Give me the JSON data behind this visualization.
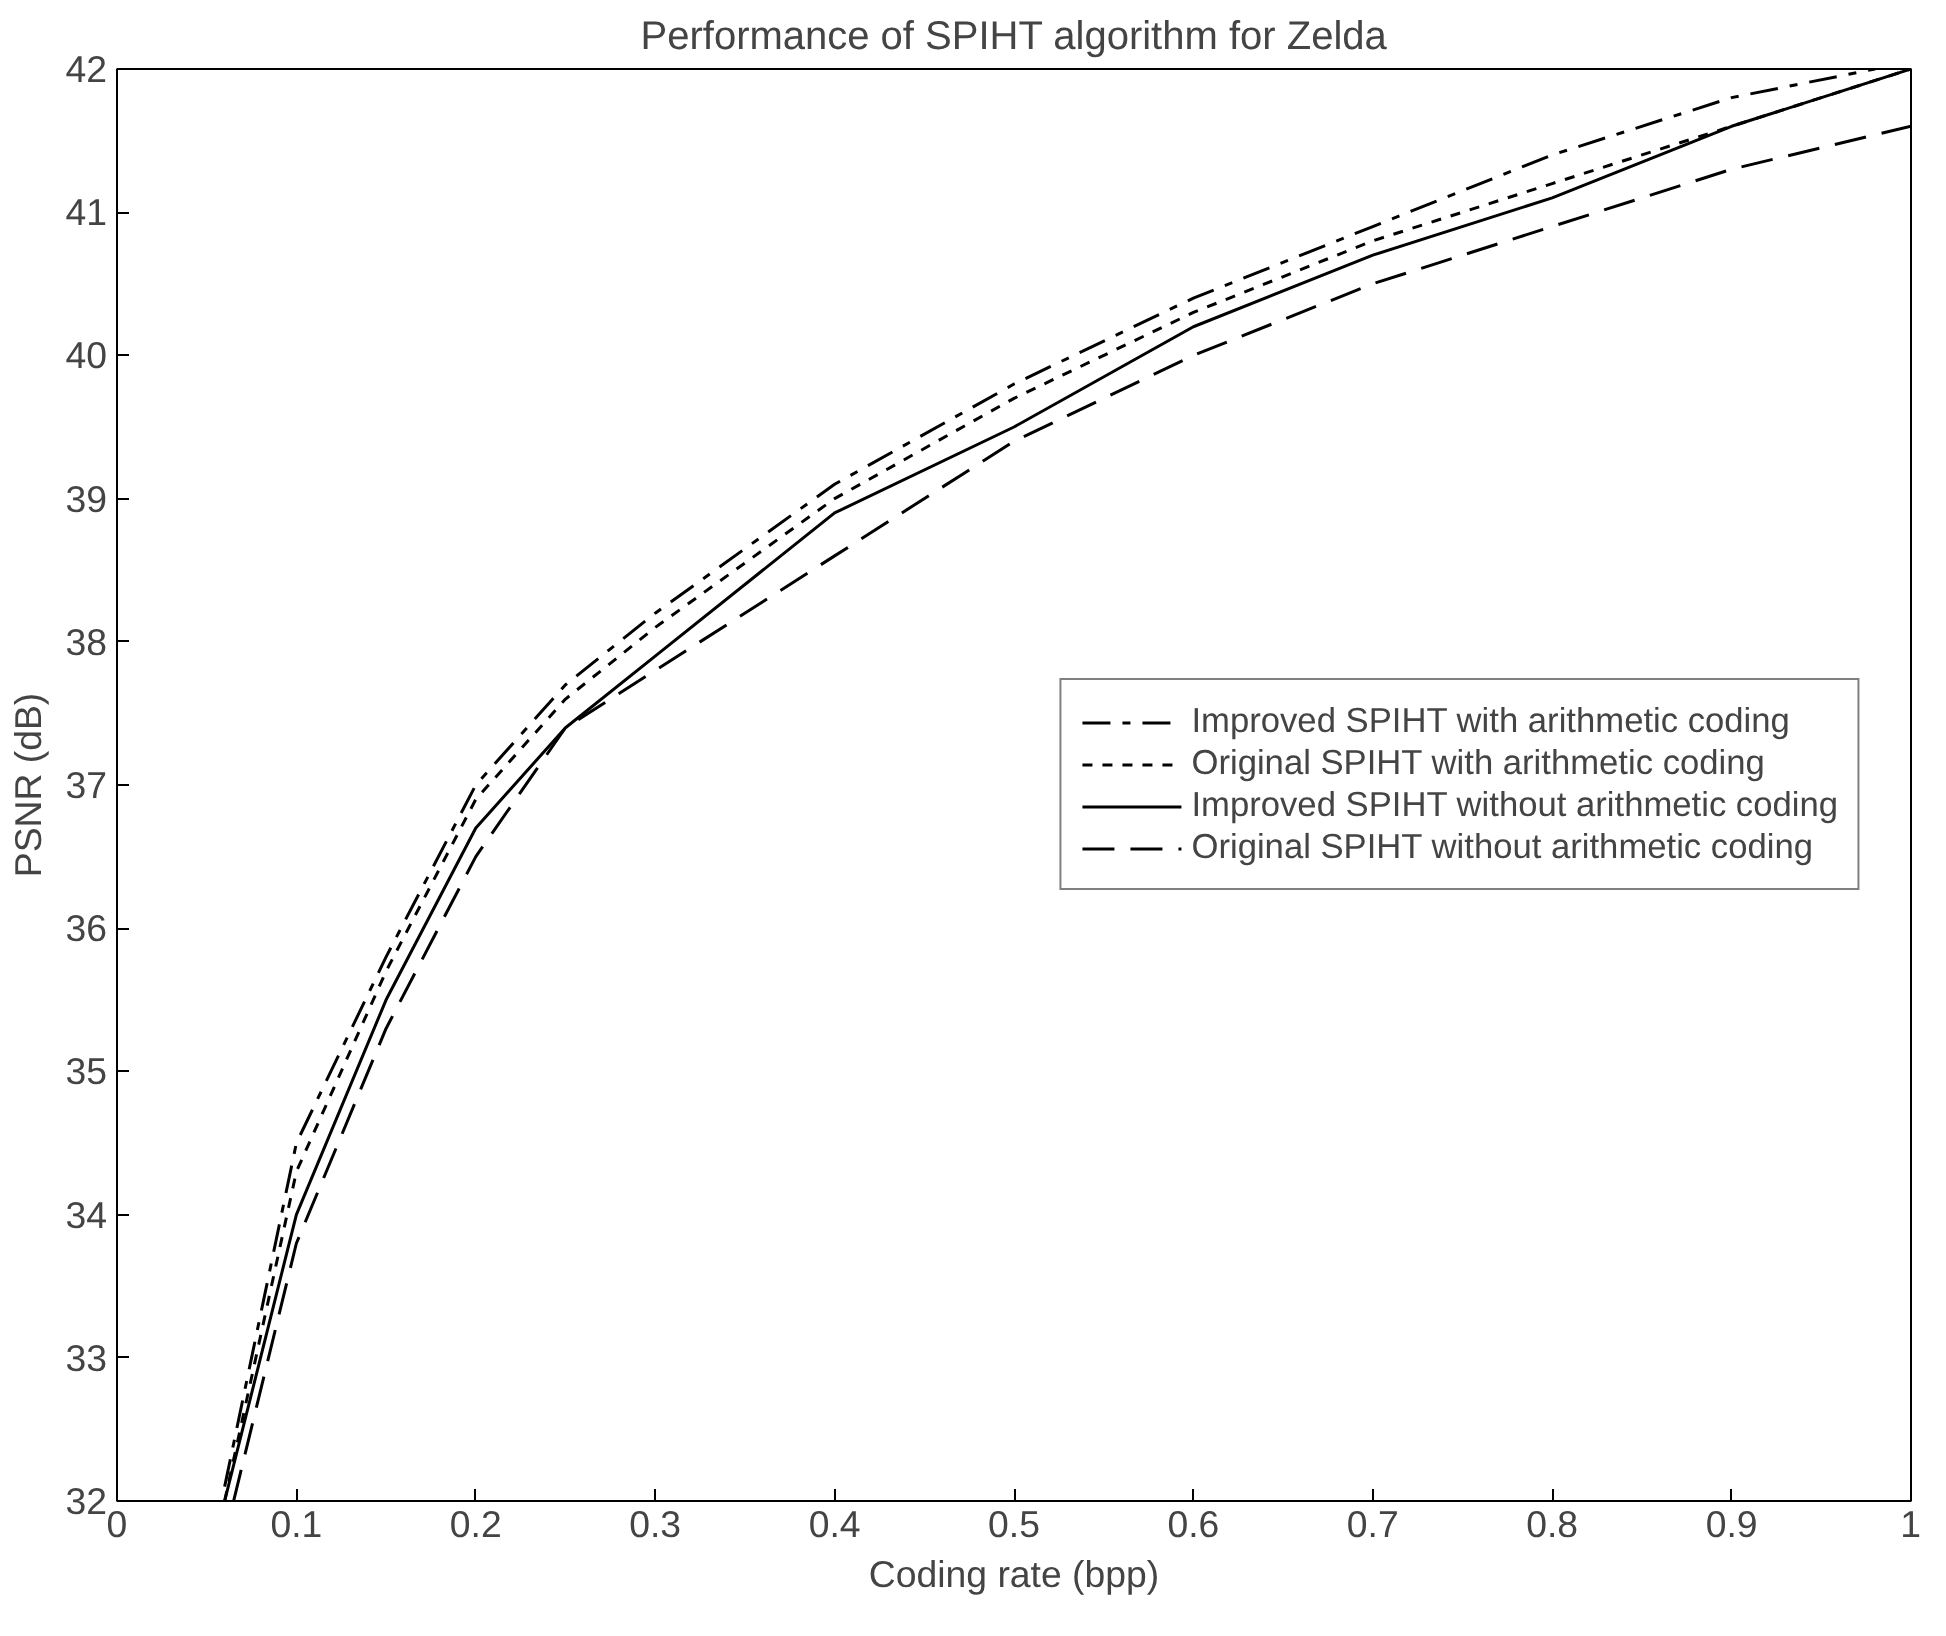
{
  "chart_data": {
    "type": "line",
    "title": "Performance of SPIHT algorithm for Zelda",
    "xlabel": "Coding rate (bpp)",
    "ylabel": "PSNR (dB)",
    "xlim": [
      0,
      1
    ],
    "ylim": [
      32,
      42
    ],
    "xticks": [
      0,
      0.1,
      0.2,
      0.3,
      0.4,
      0.5,
      0.6,
      0.7,
      0.8,
      0.9,
      1
    ],
    "yticks": [
      32,
      33,
      34,
      35,
      36,
      37,
      38,
      39,
      40,
      41,
      42
    ],
    "grid": false,
    "legend": "right",
    "series": [
      {
        "name": "Improved SPIHT with arithmetic coding",
        "color": "#000000",
        "line_style": "dashdot",
        "x": [
          0.06,
          0.1,
          0.15,
          0.2,
          0.25,
          0.3,
          0.4,
          0.5,
          0.6,
          0.7,
          0.8,
          0.9,
          0.98
        ],
        "values": [
          32.1,
          34.5,
          35.8,
          37.0,
          37.7,
          38.2,
          39.1,
          39.8,
          40.4,
          40.9,
          41.4,
          41.8,
          42.0
        ]
      },
      {
        "name": "Original SPIHT with arithmetic coding",
        "color": "#000000",
        "line_style": "dotted",
        "x": [
          0.06,
          0.1,
          0.15,
          0.2,
          0.25,
          0.3,
          0.4,
          0.5,
          0.6,
          0.7,
          0.8,
          0.9,
          1.0
        ],
        "values": [
          32.0,
          34.3,
          35.7,
          36.9,
          37.6,
          38.1,
          39.0,
          39.7,
          40.3,
          40.8,
          41.2,
          41.6,
          42.0
        ]
      },
      {
        "name": "Improved SPIHT without arithmetic coding",
        "color": "#000000",
        "line_style": "solid",
        "x": [
          0.06,
          0.1,
          0.15,
          0.2,
          0.25,
          0.3,
          0.4,
          0.5,
          0.6,
          0.7,
          0.8,
          0.9,
          1.0
        ],
        "values": [
          32.0,
          34.0,
          35.5,
          36.7,
          37.4,
          37.9,
          38.9,
          39.5,
          40.2,
          40.7,
          41.1,
          41.6,
          42.0
        ]
      },
      {
        "name": "Original SPIHT without arithmetic coding",
        "color": "#000000",
        "line_style": "dashed",
        "x": [
          0.065,
          0.1,
          0.15,
          0.2,
          0.25,
          0.3,
          0.4,
          0.5,
          0.6,
          0.7,
          0.8,
          0.9,
          1.0
        ],
        "values": [
          32.0,
          33.8,
          35.3,
          36.5,
          37.4,
          37.8,
          38.6,
          39.4,
          40.0,
          40.5,
          40.9,
          41.3,
          41.6
        ]
      }
    ]
  }
}
